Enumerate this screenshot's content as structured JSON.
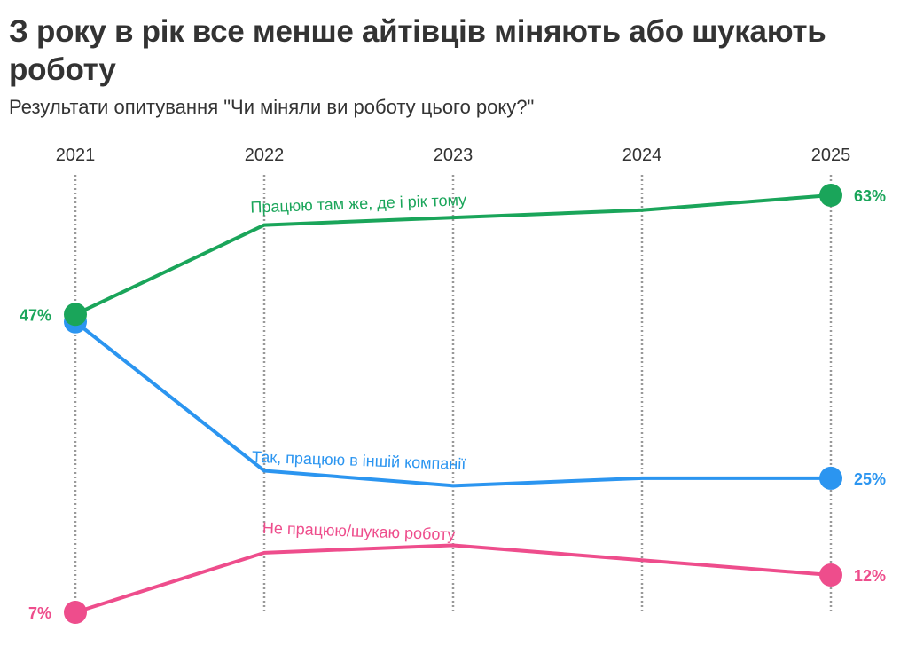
{
  "chart_data": {
    "type": "line",
    "title": "З року в рік все менше айтівців міняють або шукають роботу",
    "subtitle": "Результати опитування \"Чи міняли ви роботу цього року?\"",
    "xlabel": "",
    "ylabel": "",
    "x": [
      "2021",
      "2022",
      "2023",
      "2024",
      "2025"
    ],
    "ylim": [
      7,
      63
    ],
    "grid": "vertical dotted",
    "series": [
      {
        "name": "Працюю там же, де і рік тому",
        "color": "#1aa55a",
        "values": [
          47,
          59,
          60,
          61,
          63
        ],
        "labels": [
          "47%",
          null,
          null,
          null,
          "63%"
        ],
        "label_rotate": -2
      },
      {
        "name": "Так, працюю в іншій компанії",
        "color": "#2b95f0",
        "values": [
          46,
          26,
          24,
          25,
          25
        ],
        "labels": [
          null,
          null,
          null,
          null,
          "25%"
        ],
        "label_rotate": 2
      },
      {
        "name": "Не працюю/шукаю роботу",
        "color": "#ee4d8c",
        "values": [
          7,
          15,
          16,
          14,
          12
        ],
        "labels": [
          "7%",
          null,
          null,
          null,
          "12%"
        ],
        "label_rotate": 2
      }
    ]
  }
}
